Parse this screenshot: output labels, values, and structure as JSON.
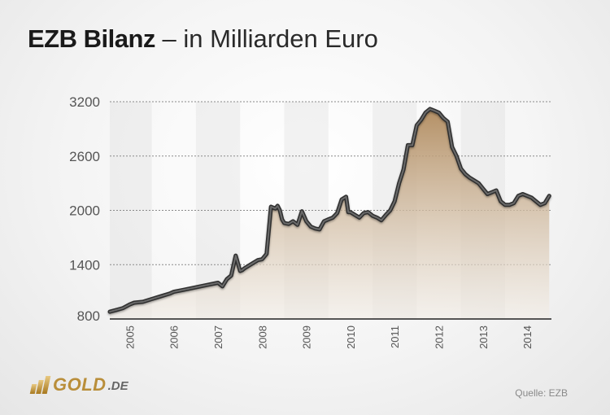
{
  "title": {
    "bold": "EZB Bilanz",
    "rest": " – in Milliarden Euro"
  },
  "source": "Quelle: EZB",
  "logo": {
    "main": "GOLD",
    "suffix": ".DE"
  },
  "colors": {
    "line": "#444444",
    "fill_top": "#b8946a",
    "fill_bottom": "#f2ede6",
    "grid": "#8a8a8a"
  },
  "chart_data": {
    "type": "area",
    "title": "EZB Bilanz – in Milliarden Euro",
    "xlabel": "",
    "ylabel": "",
    "ylim": [
      800,
      3200
    ],
    "xlim": [
      2004.55,
      2014.55
    ],
    "yticks": [
      800,
      1400,
      2000,
      2600,
      3200
    ],
    "grid": true,
    "xticks": [
      "2005",
      "2006",
      "2007",
      "2008",
      "2009",
      "2010",
      "2011",
      "2012",
      "2013",
      "2014"
    ],
    "series": [
      {
        "name": "",
        "x": [
          2004.55,
          2004.7,
          2004.85,
          2005.0,
          2005.1,
          2005.3,
          2005.5,
          2005.7,
          2005.9,
          2006.0,
          2006.2,
          2006.4,
          2006.6,
          2006.8,
          2007.0,
          2007.1,
          2007.2,
          2007.3,
          2007.4,
          2007.5,
          2007.55,
          2007.6,
          2007.7,
          2007.8,
          2007.9,
          2008.0,
          2008.1,
          2008.2,
          2008.3,
          2008.35,
          2008.4,
          2008.45,
          2008.5,
          2008.6,
          2008.7,
          2008.8,
          2008.9,
          2009.0,
          2009.05,
          2009.1,
          2009.2,
          2009.3,
          2009.4,
          2009.5,
          2009.6,
          2009.7,
          2009.8,
          2009.9,
          2009.95,
          2010.0,
          2010.1,
          2010.2,
          2010.3,
          2010.4,
          2010.5,
          2010.6,
          2010.7,
          2010.8,
          2010.9,
          2011.0,
          2011.1,
          2011.2,
          2011.3,
          2011.4,
          2011.5,
          2011.6,
          2011.7,
          2011.8,
          2011.9,
          2012.0,
          2012.1,
          2012.2,
          2012.3,
          2012.4,
          2012.5,
          2012.6,
          2012.7,
          2012.8,
          2012.9,
          2013.0,
          2013.1,
          2013.2,
          2013.3,
          2013.4,
          2013.5,
          2013.6,
          2013.7,
          2013.8,
          2013.9,
          2014.0,
          2014.1,
          2014.2,
          2014.3,
          2014.4,
          2014.5
        ],
        "values": [
          880,
          900,
          920,
          960,
          980,
          990,
          1020,
          1050,
          1080,
          1100,
          1120,
          1140,
          1160,
          1180,
          1200,
          1160,
          1240,
          1280,
          1500,
          1330,
          1340,
          1360,
          1390,
          1420,
          1450,
          1460,
          1520,
          2040,
          2020,
          2050,
          2000,
          1900,
          1860,
          1850,
          1880,
          1840,
          1990,
          1880,
          1850,
          1820,
          1800,
          1790,
          1880,
          1900,
          1920,
          1970,
          2120,
          2150,
          1980,
          1980,
          1950,
          1920,
          1970,
          1980,
          1940,
          1920,
          1890,
          1950,
          2000,
          2100,
          2300,
          2450,
          2720,
          2720,
          2940,
          3000,
          3080,
          3120,
          3100,
          3080,
          3020,
          2980,
          2700,
          2600,
          2460,
          2400,
          2360,
          2330,
          2300,
          2240,
          2180,
          2200,
          2220,
          2100,
          2060,
          2060,
          2080,
          2160,
          2180,
          2160,
          2140,
          2100,
          2060,
          2080,
          2160
        ]
      }
    ]
  }
}
